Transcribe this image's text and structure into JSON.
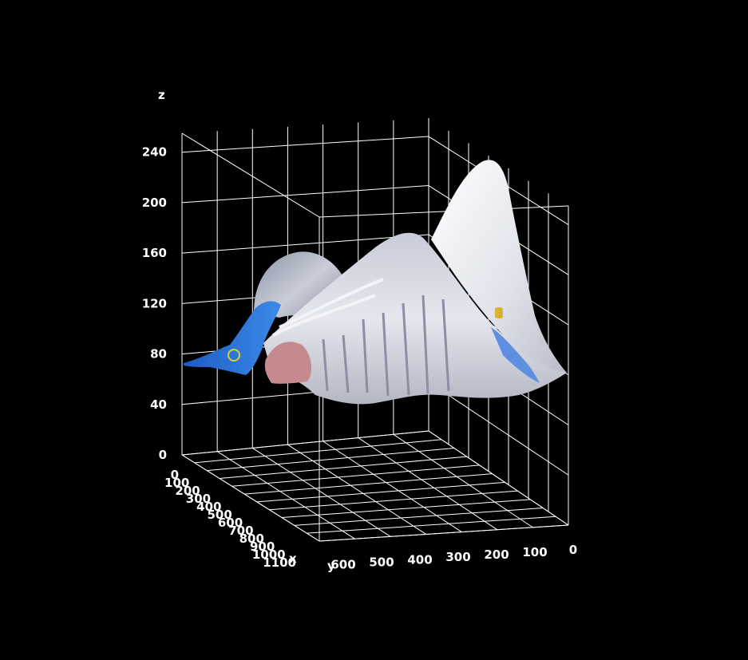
{
  "chart_data": {
    "type": "surface",
    "title": "",
    "xlabel": "x",
    "ylabel": "y",
    "zlabel": "z",
    "x_ticks": [
      "0",
      "100",
      "200",
      "300",
      "400",
      "500",
      "600",
      "700",
      "800",
      "900",
      "1000",
      "1100"
    ],
    "y_ticks": [
      "0",
      "100",
      "200",
      "300",
      "400",
      "500",
      "600"
    ],
    "z_ticks": [
      "0",
      "40",
      "80",
      "120",
      "160",
      "200",
      "240"
    ],
    "xlim": [
      0,
      1100
    ],
    "ylim": [
      0,
      650
    ],
    "zlim": [
      0,
      255
    ],
    "grid": true,
    "surface_note": "3D surface textured with a photographic image; height encodes pixel intensity",
    "colors": {
      "background": "#000000",
      "grid": "#ffffff",
      "surface_primary": "#e8eaf2",
      "surface_accent": "#2f6fd6"
    }
  }
}
